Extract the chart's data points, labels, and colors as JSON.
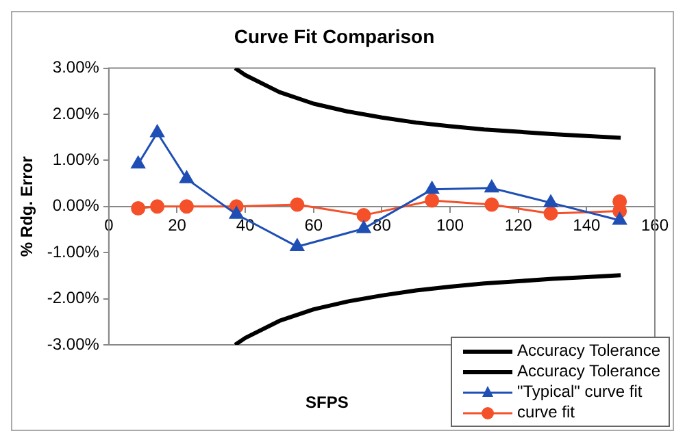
{
  "chart_data": {
    "type": "line",
    "title": "Curve Fit Comparison",
    "xlabel": "SFPS",
    "ylabel": "% Rdg. Error",
    "xlim": [
      0,
      160
    ],
    "xticks": [
      0,
      20,
      40,
      60,
      80,
      100,
      120,
      140,
      160
    ],
    "ylim": [
      -3,
      3
    ],
    "yticks": [
      {
        "value": -3,
        "label": "-3.00%"
      },
      {
        "value": -2,
        "label": "-2.00%"
      },
      {
        "value": -1,
        "label": "-1.00%"
      },
      {
        "value": 0,
        "label": "0.00%"
      },
      {
        "value": 1,
        "label": "1.00%"
      },
      {
        "value": 2,
        "label": "2.00%"
      },
      {
        "value": 3,
        "label": "3.00%"
      }
    ],
    "grid": false,
    "legend": "bottom right",
    "series": [
      {
        "name": "Accuracy Tolerance",
        "color": "#000000",
        "marker": "none",
        "x": [
          37,
          40,
          50,
          60,
          70,
          80,
          90,
          100,
          110,
          120,
          130,
          140,
          150
        ],
        "values": [
          3.0,
          2.85,
          2.48,
          2.23,
          2.06,
          1.93,
          1.82,
          1.74,
          1.67,
          1.62,
          1.57,
          1.53,
          1.49
        ]
      },
      {
        "name": "Accuracy Tolerance",
        "color": "#000000",
        "marker": "none",
        "x": [
          37,
          40,
          50,
          60,
          70,
          80,
          90,
          100,
          110,
          120,
          130,
          140,
          150
        ],
        "values": [
          -3.0,
          -2.85,
          -2.48,
          -2.23,
          -2.06,
          -1.93,
          -1.82,
          -1.74,
          -1.67,
          -1.62,
          -1.57,
          -1.53,
          -1.49
        ]
      },
      {
        "name": "\"Typical\" curve fit",
        "color": "#1f4fb4",
        "marker": "triangle",
        "x": [
          8.6,
          14.2,
          22.8,
          37.4,
          55.2,
          74.7,
          94.7,
          112.2,
          129.5,
          149.7
        ],
        "values": [
          0.92,
          1.6,
          0.6,
          -0.17,
          -0.87,
          -0.48,
          0.37,
          0.4,
          0.08,
          -0.3
        ]
      },
      {
        "name": "curve fit",
        "color": "#f4502a",
        "marker": "circle",
        "x": [
          8.6,
          14.2,
          22.8,
          37.4,
          55.2,
          74.7,
          94.7,
          112.2,
          129.5,
          149.7,
          149.7
        ],
        "values": [
          -0.04,
          0.0,
          0.0,
          0.0,
          0.04,
          -0.19,
          0.13,
          0.04,
          -0.15,
          -0.1,
          0.11
        ]
      }
    ]
  }
}
